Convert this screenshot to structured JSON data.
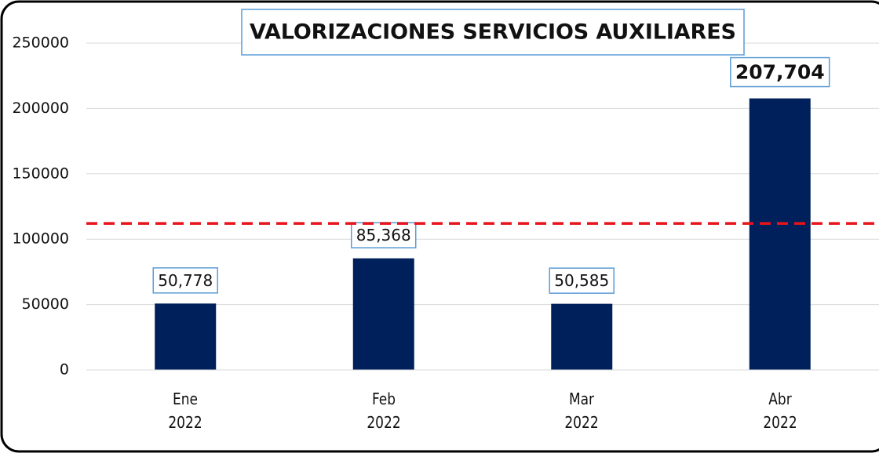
{
  "chart_data": {
    "type": "bar",
    "title": "VALORIZACIONES SERVICIOS AUXILIARES",
    "categories": [
      "Ene\n2022",
      "Feb\n2022",
      "Mar\n2022",
      "Abr\n2022"
    ],
    "values": [
      50778,
      85368,
      50585,
      207704
    ],
    "value_labels": [
      "50,778",
      "85,368",
      "50,585",
      "207,704"
    ],
    "color": "#00205b",
    "reference_line": {
      "value": 112000,
      "color": "#e8141b"
    },
    "ylim": [
      0,
      250000
    ],
    "yticks": [
      0,
      50000,
      100000,
      150000,
      200000,
      250000
    ],
    "grid": true
  }
}
